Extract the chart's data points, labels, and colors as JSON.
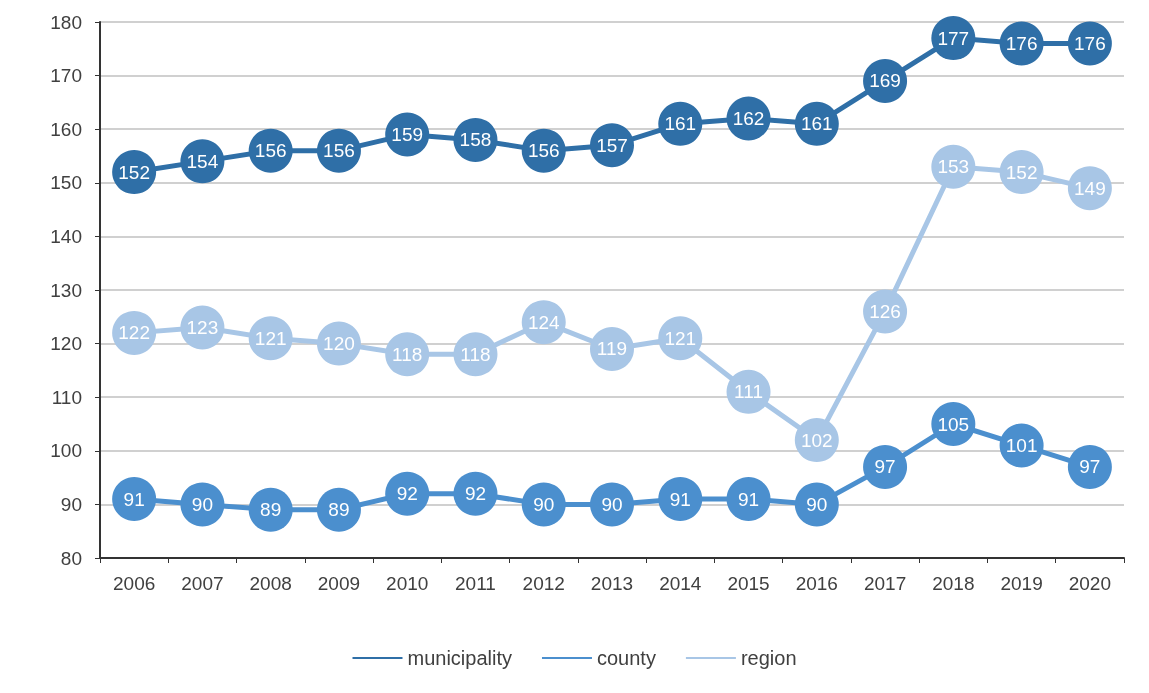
{
  "chart_data": {
    "type": "line",
    "categories": [
      "2006",
      "2007",
      "2008",
      "2009",
      "2010",
      "2011",
      "2012",
      "2013",
      "2014",
      "2015",
      "2016",
      "2017",
      "2018",
      "2019",
      "2020"
    ],
    "series": [
      {
        "name": "municipality",
        "color": "#2f6fa7",
        "values": [
          152,
          154,
          156,
          156,
          159,
          158,
          156,
          157,
          161,
          162,
          161,
          169,
          177,
          176,
          176
        ]
      },
      {
        "name": "county",
        "color": "#4b8fce",
        "values": [
          91,
          90,
          89,
          89,
          92,
          92,
          90,
          90,
          91,
          91,
          90,
          97,
          105,
          101,
          97
        ]
      },
      {
        "name": "region",
        "color": "#a8c6e6",
        "values": [
          122,
          123,
          121,
          120,
          118,
          118,
          124,
          119,
          121,
          111,
          102,
          126,
          153,
          152,
          149
        ]
      }
    ],
    "ylim": [
      80,
      180
    ],
    "yticks": [
      80,
      90,
      100,
      110,
      120,
      130,
      140,
      150,
      160,
      170,
      180
    ],
    "grid": "y",
    "legend": "bottom",
    "marker": "circle",
    "line_style": "solid",
    "data_labels": true
  }
}
